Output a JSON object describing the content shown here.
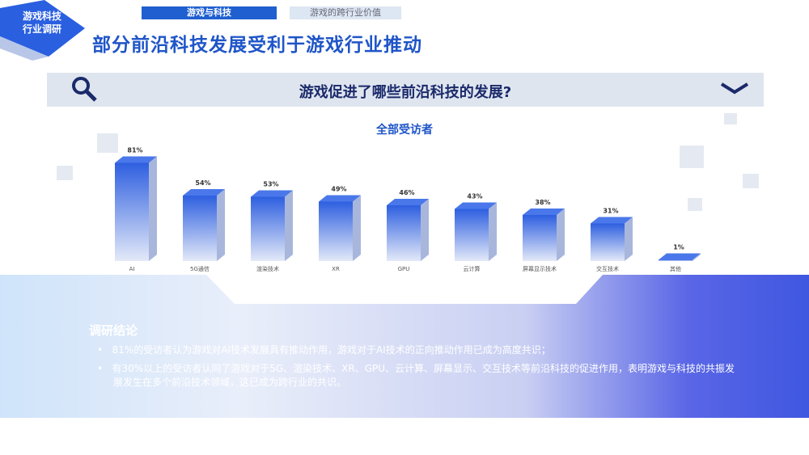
{
  "header": {
    "badge": "游戏科技\n行业调研",
    "badge_line1": "游戏科技",
    "badge_line2": "行业调研",
    "tabs": [
      "游戏与科技",
      "游戏的跨行业价值"
    ],
    "title": "部分前沿科技发展受利于游戏行业推动"
  },
  "question": {
    "text": "游戏促进了哪些前沿科技的发展?",
    "icons": [
      "search-icon",
      "chevron-down-icon"
    ]
  },
  "colors": {
    "accent": "#1f55c8",
    "bar_top": "#2e5fe0",
    "bar_bottom": "#dfe6f8"
  },
  "chart_data": {
    "type": "bar",
    "title": "全部受访者",
    "categories": [
      "AI",
      "5G通信",
      "渲染技术",
      "XR",
      "GPU",
      "云计算",
      "屏幕显示技术",
      "交互技术",
      "其他"
    ],
    "values": [
      81,
      54,
      53,
      49,
      46,
      43,
      38,
      31,
      1
    ],
    "value_labels": [
      "81%",
      "54%",
      "53%",
      "49%",
      "46%",
      "43%",
      "38%",
      "31%",
      "1%"
    ],
    "ylim": [
      0,
      100
    ],
    "grid": false
  },
  "conclusion": {
    "title": "调研结论",
    "bullets": [
      "81%的受访者认为游戏对AI技术发展具有推动作用，游戏对于AI技术的正向推动作用已成为高度共识；",
      "有30%以上的受访者认同了游戏对于5G、渲染技术、XR、GPU、云计算、屏幕显示、交互技术等前沿科技的促进作用，表明游戏与科技的共振发展发生在多个前沿技术领域，这已成为跨行业的共识。"
    ]
  }
}
